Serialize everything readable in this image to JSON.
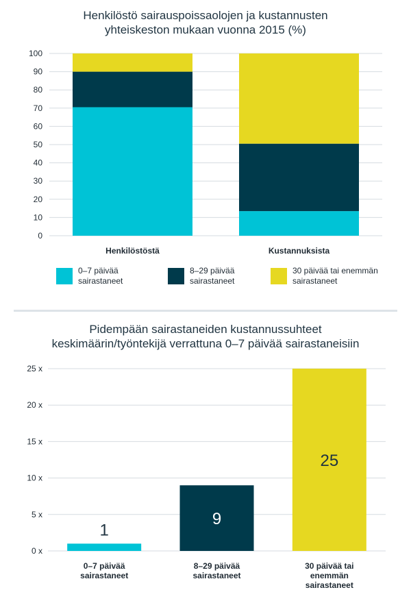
{
  "charts": [
    {
      "title_lines": [
        "Henkilöstö sairauspoissaolojen ja kustannusten",
        "yhteiskeston mukaan vuonna 2015 (%)"
      ]
    },
    {
      "title_lines": [
        "Pidempään sairastaneiden kustannussuhteet",
        "keskimäärin/työntekijä verrattuna 0–7 päivää sairastaneisiin"
      ]
    }
  ],
  "legend": [
    {
      "lines": [
        "0–7 päivää",
        "sairastaneet"
      ],
      "color": "#00c3d6"
    },
    {
      "lines": [
        "8–29 päivää",
        "sairastaneet"
      ],
      "color": "#003a4b"
    },
    {
      "lines": [
        "30 päivää tai enemmän",
        "sairastaneet"
      ],
      "color": "#e6d821"
    }
  ],
  "chart_data": [
    {
      "type": "bar",
      "stacked": true,
      "title": "Henkilöstö sairauspoissaolojen ja kustannusten yhteiskeston mukaan vuonna 2015 (%)",
      "categories": [
        "Henkilöstöstä",
        "Kustannuksista"
      ],
      "series": [
        {
          "name": "0–7 päivää sairastaneet",
          "color": "#00c3d6",
          "values": [
            70.5,
            13.5
          ]
        },
        {
          "name": "8–29 päivää sairastaneet",
          "color": "#003a4b",
          "values": [
            19.5,
            37.0
          ]
        },
        {
          "name": "30 päivää tai enemmän sairastaneet",
          "color": "#e6d821",
          "values": [
            10.0,
            49.5
          ]
        }
      ],
      "ylim": [
        0,
        100
      ],
      "yticks": [
        "0",
        "10",
        "20",
        "30",
        "40",
        "50",
        "60",
        "70",
        "80",
        "90",
        "100"
      ],
      "grid": true,
      "legend_position": "bottom"
    },
    {
      "type": "bar",
      "title": "Pidempään sairastaneiden kustannussuhteet keskimäärin/työntekijä verrattuna 0–7 päivää sairastaneisiin",
      "categories": [
        [
          "0–7 päivää",
          "sairastaneet"
        ],
        [
          "8–29 päivää",
          "sairastaneet"
        ],
        [
          "30 päivää tai",
          "enemmän",
          "sairastaneet"
        ]
      ],
      "values": [
        1,
        9,
        25
      ],
      "data_labels": [
        "1",
        "9",
        "25"
      ],
      "colors": [
        "#00c3d6",
        "#003a4b",
        "#e6d821"
      ],
      "ylim": [
        0,
        25
      ],
      "yticks": [
        "0 x",
        "5 x",
        "10 x",
        "15 x",
        "20 x",
        "25 x"
      ],
      "grid": true
    }
  ]
}
